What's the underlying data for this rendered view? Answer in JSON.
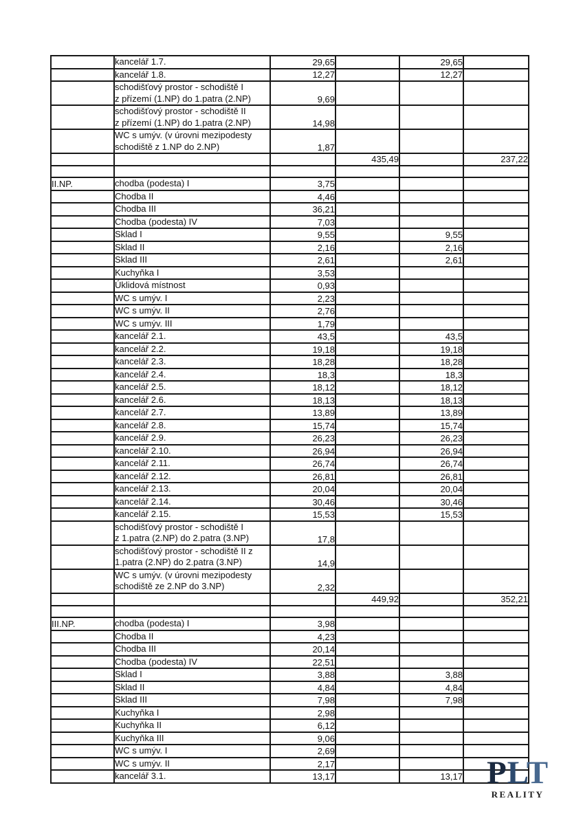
{
  "table": {
    "rows": [
      {
        "type": "data",
        "name": [
          "kancelář 1.7."
        ],
        "v1": "29,65",
        "v2": "29,65"
      },
      {
        "type": "data",
        "name": [
          "kancelář 1.8."
        ],
        "v1": "12,27",
        "v2": "12,27"
      },
      {
        "type": "data",
        "name": [
          "schodišťový prostor - schodiště I",
          "z přízemí (1.NP) do 1.patra (2.NP)"
        ],
        "v1": "9,69"
      },
      {
        "type": "data",
        "name": [
          "schodišťový prostor - schodiště II",
          "z přízemí (1.NP) do 1.patra (2.NP)"
        ],
        "v1": "14,98"
      },
      {
        "type": "data",
        "name": [
          "WC s umýv. (v úrovni mezipodesty",
          "schodiště z 1.NP do 2.NP)"
        ],
        "v1": "1,87"
      },
      {
        "type": "total",
        "t1": "435,49",
        "t2": "237,22"
      },
      {
        "type": "spacer"
      },
      {
        "type": "data",
        "floor": "II.NP.",
        "name": [
          "chodba (podesta) I"
        ],
        "v1": "3,75"
      },
      {
        "type": "data",
        "name": [
          "Chodba II"
        ],
        "v1": "4,46"
      },
      {
        "type": "data",
        "name": [
          "Chodba III"
        ],
        "v1": "36,21"
      },
      {
        "type": "data",
        "name": [
          "Chodba (podesta) IV"
        ],
        "v1": "7,03"
      },
      {
        "type": "data",
        "name": [
          "Sklad I"
        ],
        "v1": "9,55",
        "v2": "9,55"
      },
      {
        "type": "data",
        "name": [
          "Sklad II"
        ],
        "v1": "2,16",
        "v2": "2,16"
      },
      {
        "type": "data",
        "name": [
          "Sklad III"
        ],
        "v1": "2,61",
        "v2": "2,61"
      },
      {
        "type": "data",
        "name": [
          "Kuchyňka I"
        ],
        "v1": "3,53"
      },
      {
        "type": "data",
        "name": [
          "Úklidová místnost"
        ],
        "v1": "0,93"
      },
      {
        "type": "data",
        "name": [
          "WC s umýv. I"
        ],
        "v1": "2,23"
      },
      {
        "type": "data",
        "name": [
          "WC s umýv. II"
        ],
        "v1": "2,76"
      },
      {
        "type": "data",
        "name": [
          "WC s umýv. III"
        ],
        "v1": "1,79"
      },
      {
        "type": "data",
        "name": [
          "kancelář 2.1."
        ],
        "v1": "43,5",
        "v2": "43,5"
      },
      {
        "type": "data",
        "name": [
          "kancelář 2.2."
        ],
        "v1": "19,18",
        "v2": "19,18"
      },
      {
        "type": "data",
        "name": [
          "kancelář 2.3."
        ],
        "v1": "18,28",
        "v2": "18,28"
      },
      {
        "type": "data",
        "name": [
          "kancelář 2.4."
        ],
        "v1": "18,3",
        "v2": "18,3"
      },
      {
        "type": "data",
        "name": [
          "kancelář 2.5."
        ],
        "v1": "18,12",
        "v2": "18,12"
      },
      {
        "type": "data",
        "name": [
          "kancelář 2.6."
        ],
        "v1": "18,13",
        "v2": "18,13"
      },
      {
        "type": "data",
        "name": [
          "kancelář 2.7."
        ],
        "v1": "13,89",
        "v2": "13,89"
      },
      {
        "type": "data",
        "name": [
          "kancelář 2.8."
        ],
        "v1": "15,74",
        "v2": "15,74"
      },
      {
        "type": "data",
        "name": [
          "kancelář 2.9."
        ],
        "v1": "26,23",
        "v2": "26,23"
      },
      {
        "type": "data",
        "name": [
          "kancelář 2.10."
        ],
        "v1": "26,94",
        "v2": "26,94"
      },
      {
        "type": "data",
        "name": [
          "kancelář 2.11."
        ],
        "v1": "26,74",
        "v2": "26,74"
      },
      {
        "type": "data",
        "name": [
          "kancelář 2.12."
        ],
        "v1": "26,81",
        "v2": "26,81"
      },
      {
        "type": "data",
        "name": [
          "kancelář 2.13."
        ],
        "v1": "20,04",
        "v2": "20,04"
      },
      {
        "type": "data",
        "name": [
          "kancelář 2.14."
        ],
        "v1": "30,46",
        "v2": "30,46"
      },
      {
        "type": "data",
        "name": [
          "kancelář 2.15."
        ],
        "v1": "15,53",
        "v2": "15,53"
      },
      {
        "type": "data",
        "name": [
          "schodišťový prostor - schodiště I",
          "z 1.patra (2.NP) do 2.patra (3.NP)"
        ],
        "v1": "17,8"
      },
      {
        "type": "data",
        "name": [
          "schodišťový prostor - schodiště II z",
          "1.patra (2.NP) do 2.patra (3.NP)"
        ],
        "v1": "14,9"
      },
      {
        "type": "data",
        "name": [
          "WC s umýv. (v úrovni mezipodesty",
          "schodiště ze 2.NP do 3.NP)"
        ],
        "v1": "2,32"
      },
      {
        "type": "total",
        "t1": "449,92",
        "t2": "352,21"
      },
      {
        "type": "spacer"
      },
      {
        "type": "data",
        "floor": "III.NP.",
        "name": [
          "chodba (podesta) I"
        ],
        "v1": "3,98"
      },
      {
        "type": "data",
        "name": [
          "Chodba II"
        ],
        "v1": "4,23"
      },
      {
        "type": "data",
        "name": [
          "Chodba III"
        ],
        "v1": "20,14"
      },
      {
        "type": "data",
        "name": [
          "Chodba (podesta) IV"
        ],
        "v1": "22,51"
      },
      {
        "type": "data",
        "name": [
          "Sklad I"
        ],
        "v1": "3,88",
        "v2": "3,88"
      },
      {
        "type": "data",
        "name": [
          "Sklad II"
        ],
        "v1": "4,84",
        "v2": "4,84"
      },
      {
        "type": "data",
        "name": [
          "Sklad III"
        ],
        "v1": "7,98",
        "v2": "7,98"
      },
      {
        "type": "data",
        "name": [
          "Kuchyňka I"
        ],
        "v1": "2,98"
      },
      {
        "type": "data",
        "name": [
          "Kuchyňka II"
        ],
        "v1": "6,12"
      },
      {
        "type": "data",
        "name": [
          "Kuchyňka III"
        ],
        "v1": "9,06"
      },
      {
        "type": "data",
        "name": [
          "WC s umýv. I"
        ],
        "v1": "2,69"
      },
      {
        "type": "data",
        "name": [
          "WC s umýv. II"
        ],
        "v1": "2,17"
      },
      {
        "type": "data",
        "name": [
          "kancelář 3.1."
        ],
        "v1": "13,17",
        "v2": "13,17"
      }
    ]
  },
  "logo": {
    "letters": [
      {
        "char": "P",
        "color": "#1b2a40"
      },
      {
        "char": "L",
        "color": "#2d4a6e"
      },
      {
        "char": "T",
        "color": "#47688f"
      }
    ],
    "subtitle": "REALITY"
  },
  "colors": {
    "border": "#181818",
    "text": "#111111",
    "page_background": "#ffffff"
  }
}
